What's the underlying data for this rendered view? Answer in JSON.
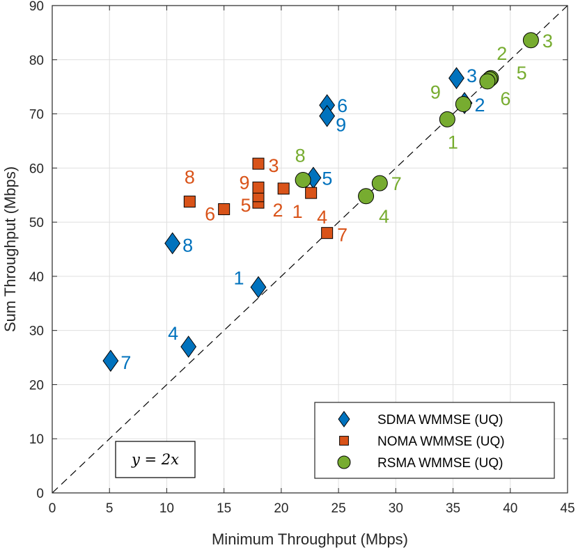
{
  "chart_data": {
    "type": "scatter",
    "xlabel": "Minimum Throughput (Mbps)",
    "ylabel": "Sum Throughput (Mbps)",
    "xlim": [
      0,
      45
    ],
    "ylim": [
      0,
      90
    ],
    "xticks": [
      0,
      5,
      10,
      15,
      20,
      25,
      30,
      35,
      40,
      45
    ],
    "yticks": [
      0,
      10,
      20,
      30,
      40,
      50,
      60,
      70,
      80,
      90
    ],
    "grid": true,
    "legend_position": "bottom-right",
    "reference_line": {
      "label": "y = 2x",
      "slope": 2,
      "style": "dashed",
      "color": "#000000"
    },
    "series": [
      {
        "name": "SDMA WMMSE (UQ)",
        "marker": "diamond",
        "color": "#0072BD",
        "points": [
          {
            "label": "1",
            "x": 18.0,
            "y": 38.0
          },
          {
            "label": "2",
            "x": 36.0,
            "y": 72.0
          },
          {
            "label": "3",
            "x": 35.3,
            "y": 76.6
          },
          {
            "label": "4",
            "x": 11.9,
            "y": 27.0
          },
          {
            "label": "5",
            "x": 22.8,
            "y": 58.2
          },
          {
            "label": "6",
            "x": 24.0,
            "y": 71.6
          },
          {
            "label": "7",
            "x": 5.1,
            "y": 24.4
          },
          {
            "label": "8",
            "x": 10.5,
            "y": 46.1
          },
          {
            "label": "9",
            "x": 24.0,
            "y": 69.6
          }
        ]
      },
      {
        "name": "NOMA WMMSE (UQ)",
        "marker": "square",
        "color": "#D95319",
        "points": [
          {
            "label": "1",
            "x": 20.2,
            "y": 56.2
          },
          {
            "label": "2",
            "x": 18.0,
            "y": 53.6
          },
          {
            "label": "3",
            "x": 18.0,
            "y": 60.8
          },
          {
            "label": "4",
            "x": 22.6,
            "y": 55.4
          },
          {
            "label": "5",
            "x": 18.0,
            "y": 54.8
          },
          {
            "label": "6",
            "x": 15.0,
            "y": 52.4
          },
          {
            "label": "7",
            "x": 24.0,
            "y": 48.0
          },
          {
            "label": "8",
            "x": 12.0,
            "y": 53.8
          },
          {
            "label": "9",
            "x": 18.0,
            "y": 56.4
          }
        ]
      },
      {
        "name": "RSMA WMMSE (UQ)",
        "marker": "circle",
        "color": "#77AC30",
        "points": [
          {
            "label": "1",
            "x": 34.5,
            "y": 69.0
          },
          {
            "label": "2",
            "x": 38.3,
            "y": 76.6
          },
          {
            "label": "3",
            "x": 41.8,
            "y": 83.6
          },
          {
            "label": "4",
            "x": 27.4,
            "y": 54.8
          },
          {
            "label": "5",
            "x": 38.2,
            "y": 76.4
          },
          {
            "label": "6",
            "x": 38.0,
            "y": 76.0
          },
          {
            "label": "7",
            "x": 28.6,
            "y": 57.2
          },
          {
            "label": "8",
            "x": 21.9,
            "y": 57.8
          },
          {
            "label": "9",
            "x": 35.9,
            "y": 71.8
          }
        ]
      }
    ]
  }
}
